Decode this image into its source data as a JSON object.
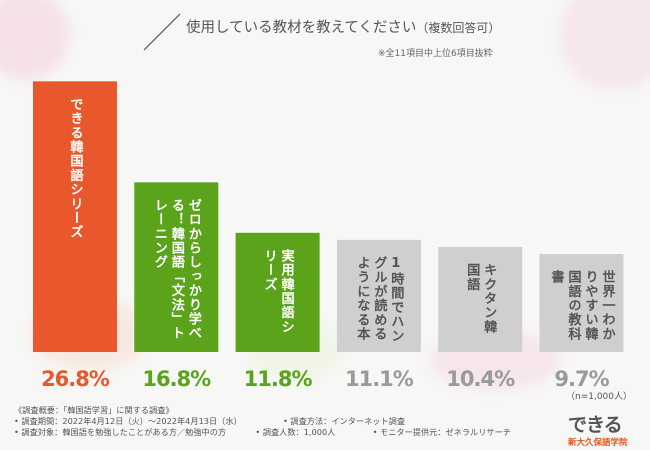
{
  "title": "使用している教材を教えてください",
  "title_suffix": "（複数回答可）",
  "note": "※全11項目中上位6項目抜粋",
  "sample_size": "（n=1,000人）",
  "footer": {
    "overview": "《調査概要：「韓国語学習」に関する調査》",
    "period": "• 調査期間：2022年4月12日（火）〜2022年4月13日（水）",
    "method": "• 調査方法：インターネット調査",
    "target": "• 調査対象：韓国語を勉強したことがある方／勉強中の方",
    "count": "• 調査人数：1,000人",
    "monitor": "• モニター提供元：ゼネラルリサーチ"
  },
  "logo": {
    "mark": "できる",
    "name": "新大久保語学院"
  },
  "chart_data": {
    "type": "bar",
    "categories": [
      "できる韓国語シリーズ",
      "ゼロからしっかり学べる！韓国語「文法」トレーニング",
      "実用韓国語シリーズ",
      "1時間でハングルが読めるようになる本",
      "キクタン韓国語",
      "世界一わかりやすい韓国語の教科書"
    ],
    "values": [
      26.8,
      16.8,
      11.8,
      11.1,
      10.4,
      9.7
    ],
    "value_labels": [
      "26.8%",
      "16.8%",
      "11.8%",
      "11.1%",
      "10.4%",
      "9.7%"
    ],
    "colors": [
      "#e8582c",
      "#5aa31b",
      "#5aa31b",
      "#cfcfcf",
      "#cfcfcf",
      "#cfcfcf"
    ],
    "value_label_colors": [
      "#e8582c",
      "#5aa31b",
      "#5aa31b",
      "#9a9a9a",
      "#9a9a9a",
      "#9a9a9a"
    ],
    "grid": false,
    "legend": "none"
  }
}
